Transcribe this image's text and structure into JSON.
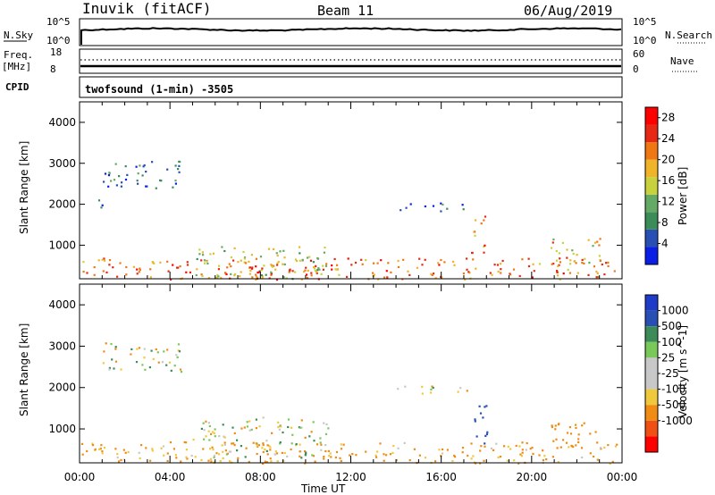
{
  "header": {
    "station": "Inuvik (fitACF)",
    "beam": "Beam 11",
    "date": "06/Aug/2019"
  },
  "top_panels": {
    "nsky_label": "N.Sky",
    "nsky_ticks": [
      "10^5",
      "10^0"
    ],
    "nsearch_label": "N.Search",
    "nsearch_ticks": [
      "10^5",
      "10^0"
    ],
    "freq_label": "Freq.",
    "freq_unit": "[MHz]",
    "freq_ticks": [
      "18",
      "8"
    ],
    "nave_label": "Nave",
    "nave_ticks": [
      "60",
      "0"
    ],
    "cpid_label": "CPID",
    "cpid_value": "twofsound (1-min) -3505"
  },
  "colors": {
    "power_scale": [
      "#0a1ee6",
      "#2850b4",
      "#3c8c5a",
      "#64aa64",
      "#c8d23c",
      "#f0b428",
      "#f07814",
      "#e62814",
      "#ff0000"
    ],
    "velocity_scale": [
      "#ff0000",
      "#f05014",
      "#f08c14",
      "#f0c83c",
      "#c8c8c8",
      "#c8c8c8",
      "#78c85a",
      "#3c8c5a",
      "#2850b4",
      "#1e3cc8"
    ]
  },
  "chart_data": [
    {
      "type": "heatmap",
      "title": "Power",
      "xlabel": "Time UT",
      "ylabel": "Slant Range [km]",
      "x_ticks": [
        "00:00",
        "04:00",
        "08:00",
        "12:00",
        "16:00",
        "20:00",
        "00:00"
      ],
      "x_range_hours": [
        0,
        24
      ],
      "ylim": [
        180,
        4500
      ],
      "y_ticks": [
        1000,
        2000,
        3000,
        4000
      ],
      "colorbar": {
        "label": "Power [dB]",
        "ticks": [
          4,
          8,
          12,
          16,
          20,
          24,
          28
        ],
        "range": [
          0,
          30
        ]
      },
      "echo_regions": [
        {
          "t": [
            0.0,
            23.8
          ],
          "r": [
            180,
            700
          ],
          "value_db": 22
        },
        {
          "t": [
            5.0,
            11.0
          ],
          "r": [
            200,
            1000
          ],
          "value_db": 14
        },
        {
          "t": [
            7.5,
            10.5
          ],
          "r": [
            180,
            500
          ],
          "value_db": 27
        },
        {
          "t": [
            1.0,
            4.5
          ],
          "r": [
            2400,
            3100
          ],
          "value_db": 6
        },
        {
          "t": [
            13.8,
            17.2
          ],
          "r": [
            1850,
            2050
          ],
          "value_db": 5
        },
        {
          "t": [
            17.3,
            18.0
          ],
          "r": [
            800,
            1800
          ],
          "value_db": 22
        },
        {
          "t": [
            20.8,
            23.0
          ],
          "r": [
            500,
            1200
          ],
          "value_db": 18
        },
        {
          "t": [
            0.8,
            1.1
          ],
          "r": [
            1800,
            2300
          ],
          "value_db": 8
        }
      ]
    },
    {
      "type": "heatmap",
      "title": "Velocity",
      "xlabel": "Time UT",
      "ylabel": "Slant Range [km]",
      "x_ticks": [
        "00:00",
        "04:00",
        "08:00",
        "12:00",
        "16:00",
        "20:00",
        "00:00"
      ],
      "x_range_hours": [
        0,
        24
      ],
      "ylim": [
        180,
        4500
      ],
      "y_ticks": [
        1000,
        2000,
        3000,
        4000
      ],
      "colorbar": {
        "label": "Velocity [m s^-1]",
        "ticks": [
          1000,
          500,
          100,
          25,
          -25,
          -100,
          -500,
          -1000
        ]
      },
      "echo_regions": [
        {
          "t": [
            0.0,
            23.8
          ],
          "r": [
            180,
            700
          ],
          "value_ms": -150
        },
        {
          "t": [
            5.0,
            11.0
          ],
          "r": [
            300,
            1300
          ],
          "value_ms": 0
        },
        {
          "t": [
            1.0,
            4.5
          ],
          "r": [
            2400,
            3100
          ],
          "value_ms": 0
        },
        {
          "t": [
            13.8,
            17.2
          ],
          "r": [
            1850,
            2050
          ],
          "value_ms": 0
        },
        {
          "t": [
            17.3,
            18.0
          ],
          "r": [
            600,
            1600
          ],
          "value_ms": 800
        },
        {
          "t": [
            20.8,
            23.0
          ],
          "r": [
            500,
            1200
          ],
          "value_ms": -300
        }
      ]
    }
  ]
}
